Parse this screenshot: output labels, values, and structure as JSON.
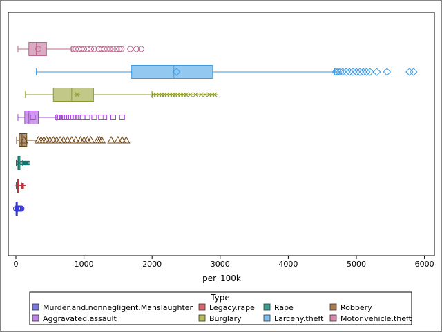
{
  "chart_data": {
    "type": "boxplot",
    "orientation": "horizontal",
    "xlabel": "per_100k",
    "ylabel": "",
    "xlim": [
      0,
      6000
    ],
    "x_ticks": [
      0,
      1000,
      2000,
      3000,
      4000,
      5000,
      6000
    ],
    "grid": false,
    "legend": {
      "title": "Type",
      "placement": "bottom"
    },
    "series": [
      {
        "name": "Motor.vehicle.theft",
        "color": "#c0658f",
        "marker": "circle",
        "whisker_low": 30,
        "q1": 190,
        "median": 300,
        "q3": 450,
        "mean": 330,
        "whisker_high": 820,
        "outliers": [
          840,
          880,
          920,
          960,
          1000,
          1050,
          1100,
          1150,
          1220,
          1260,
          1300,
          1340,
          1380,
          1430,
          1480,
          1520,
          1550,
          1680,
          1770,
          1840
        ]
      },
      {
        "name": "Larceny.theft",
        "color": "#3b9de6",
        "marker": "diamond",
        "whisker_low": 300,
        "q1": 1700,
        "median": 2320,
        "q3": 2890,
        "mean": 2360,
        "whisker_high": 4680,
        "outliers": [
          4700,
          4730,
          4760,
          4800,
          4850,
          4900,
          4950,
          5000,
          5050,
          5100,
          5150,
          5200,
          5300,
          5450,
          5780,
          5840
        ]
      },
      {
        "name": "Burglary",
        "color": "#8e9a26",
        "marker": "star",
        "whisker_low": 140,
        "q1": 550,
        "median": 820,
        "q3": 1140,
        "mean": 900,
        "whisker_high": 2000,
        "outliers": [
          2020,
          2060,
          2100,
          2140,
          2180,
          2220,
          2260,
          2300,
          2340,
          2380,
          2420,
          2460,
          2500,
          2560,
          2640,
          2720,
          2780,
          2840,
          2880,
          2920
        ]
      },
      {
        "name": "Aggravated.assault",
        "color": "#a349d8",
        "marker": "square",
        "whisker_low": 30,
        "q1": 130,
        "median": 190,
        "q3": 330,
        "mean": 250,
        "whisker_high": 600,
        "outliers": [
          620,
          650,
          680,
          710,
          740,
          770,
          800,
          840,
          880,
          920,
          980,
          1050,
          1150,
          1250,
          1300,
          1430,
          1560
        ]
      },
      {
        "name": "Robbery",
        "color": "#6e4414",
        "marker": "triangle",
        "whisker_low": 10,
        "q1": 50,
        "median": 90,
        "q3": 160,
        "mean": 120,
        "whisker_high": 310,
        "outliers": [
          330,
          370,
          410,
          450,
          500,
          550,
          600,
          650,
          700,
          760,
          820,
          880,
          950,
          1000,
          1050,
          1100,
          1200,
          1230,
          1260,
          1400,
          1500,
          1560,
          1620
        ]
      },
      {
        "name": "Rape",
        "color": "#12766c",
        "marker": "star",
        "whisker_low": 5,
        "q1": 30,
        "median": 40,
        "q3": 60,
        "mean": 45,
        "whisker_high": 100,
        "outliers": [
          110,
          120,
          130,
          140,
          150,
          160,
          170
        ]
      },
      {
        "name": "Legacy.rape",
        "color": "#c0303a",
        "marker": "plus",
        "whisker_low": 5,
        "q1": 25,
        "median": 35,
        "q3": 45,
        "mean": 35,
        "whisker_high": 80,
        "outliers": [
          90,
          100,
          110
        ]
      },
      {
        "name": "Murder.and.nonnegligent.Manslaughter",
        "color": "#3535d8",
        "marker": "circle",
        "whisker_low": 0,
        "q1": 2,
        "median": 4,
        "q3": 7,
        "mean": 5,
        "whisker_high": 20,
        "outliers": [
          25,
          32,
          40,
          50,
          60,
          70,
          80
        ]
      }
    ],
    "legend_entries": [
      {
        "name": "Murder.and.nonnegligent.Manslaughter",
        "color": "#7a78e0"
      },
      {
        "name": "Legacy.rape",
        "color": "#d96a70"
      },
      {
        "name": "Rape",
        "color": "#3f9c92"
      },
      {
        "name": "Robbery",
        "color": "#a67c52"
      },
      {
        "name": "Aggravated.assault",
        "color": "#c083e6"
      },
      {
        "name": "Burglary",
        "color": "#b5bb5c"
      },
      {
        "name": "Larceny.theft",
        "color": "#7fc0f0"
      },
      {
        "name": "Motor.vehicle.theft",
        "color": "#d889ad"
      }
    ]
  }
}
